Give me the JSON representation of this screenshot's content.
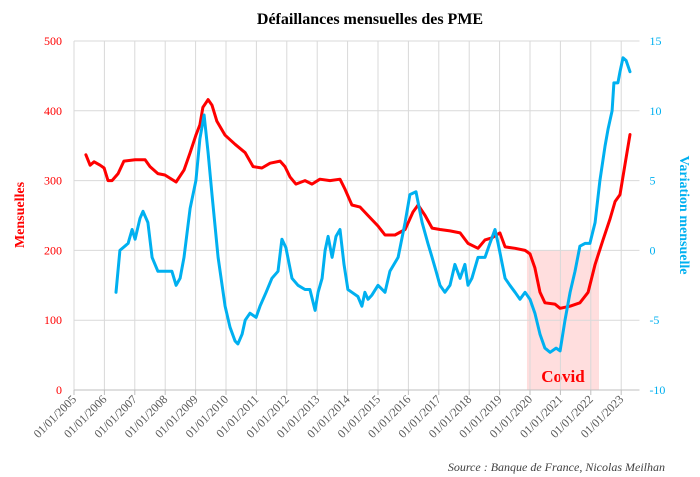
{
  "chart_data": {
    "type": "line",
    "title": "Défaillances mensuelles des PME",
    "source": "Source : Banque de France, Nicolas Meilhan",
    "xlabel": "",
    "ylabel_left": "Mensuelles",
    "ylabel_right": "Variation mensuelle",
    "xlim": [
      2005,
      2023.6
    ],
    "ylim_left": [
      0,
      500
    ],
    "ylim_right": [
      -10,
      15
    ],
    "grid": true,
    "x_ticks": [
      2005,
      2006,
      2007,
      2008,
      2009,
      2010,
      2011,
      2012,
      2013,
      2014,
      2015,
      2016,
      2017,
      2018,
      2019,
      2020,
      2021,
      2022,
      2023
    ],
    "x_tick_labels": [
      "01/01/2005",
      "01/01/2006",
      "01/01/2007",
      "01/01/2008",
      "01/01/2009",
      "01/01/2010",
      "01/01/2011",
      "01/01/2012",
      "01/01/2013",
      "01/01/2014",
      "01/01/2015",
      "01/01/2016",
      "01/01/2017",
      "01/01/2018",
      "01/01/2019",
      "01/01/2020",
      "01/01/2021",
      "01/01/2022",
      "01/01/2023"
    ],
    "y_left_ticks": [
      0,
      100,
      200,
      300,
      400,
      500
    ],
    "y_left_tick_labels": [
      "0",
      "100",
      "200",
      "300",
      "400",
      "500"
    ],
    "y_right_ticks": [
      -10,
      -5,
      0,
      5,
      10,
      15
    ],
    "y_right_tick_labels": [
      "-10",
      "-5",
      "0",
      "5",
      "10",
      "15"
    ],
    "annotation": {
      "label": "Covid",
      "x_range": [
        2019.9,
        2022.27
      ],
      "y_range_left": [
        0,
        200
      ],
      "color": "#ffdede"
    },
    "series": [
      {
        "name": "Mensuelles",
        "axis": "left",
        "color": "#ff0000",
        "x": [
          2005.39,
          2005.53,
          2005.66,
          2005.86,
          2005.99,
          2006.12,
          2006.25,
          2006.45,
          2006.64,
          2007.01,
          2007.34,
          2007.5,
          2007.76,
          2007.99,
          2008.36,
          2008.62,
          2008.82,
          2009.01,
          2009.14,
          2009.24,
          2009.41,
          2009.54,
          2009.7,
          2009.97,
          2010.3,
          2010.63,
          2010.89,
          2011.18,
          2011.45,
          2011.78,
          2011.94,
          2012.11,
          2012.3,
          2012.6,
          2012.83,
          2013.09,
          2013.42,
          2013.75,
          2013.91,
          2014.14,
          2014.41,
          2014.67,
          2015.0,
          2015.23,
          2015.56,
          2015.89,
          2016.15,
          2016.32,
          2016.55,
          2016.78,
          2017.04,
          2017.37,
          2017.7,
          2017.96,
          2018.29,
          2018.52,
          2018.75,
          2019.01,
          2019.18,
          2019.51,
          2019.84,
          2020.0,
          2020.16,
          2020.33,
          2020.49,
          2020.82,
          2020.99,
          2021.32,
          2021.64,
          2021.91,
          2022.14,
          2022.4,
          2022.63,
          2022.8,
          2022.96,
          2023.13,
          2023.29
        ],
        "y": [
          337,
          322,
          327,
          322,
          318,
          300,
          300,
          310,
          328,
          330,
          330,
          320,
          310,
          308,
          298,
          315,
          340,
          365,
          380,
          405,
          416,
          408,
          385,
          365,
          352,
          340,
          320,
          318,
          325,
          328,
          320,
          305,
          295,
          300,
          295,
          302,
          300,
          302,
          288,
          265,
          262,
          250,
          235,
          222,
          222,
          230,
          255,
          265,
          250,
          232,
          230,
          228,
          225,
          210,
          203,
          215,
          218,
          225,
          205,
          203,
          200,
          195,
          175,
          140,
          125,
          123,
          117,
          120,
          125,
          140,
          180,
          215,
          245,
          270,
          280,
          325,
          366
        ]
      },
      {
        "name": "Variation mensuelle",
        "axis": "right",
        "color": "#00b0f0",
        "x": [
          2006.38,
          2006.51,
          2006.78,
          2006.91,
          2007.01,
          2007.17,
          2007.27,
          2007.43,
          2007.57,
          2007.76,
          2007.93,
          2008.22,
          2008.36,
          2008.49,
          2008.62,
          2008.82,
          2009.01,
          2009.14,
          2009.28,
          2009.41,
          2009.54,
          2009.74,
          2009.97,
          2010.13,
          2010.3,
          2010.39,
          2010.53,
          2010.63,
          2010.79,
          2010.99,
          2011.12,
          2011.32,
          2011.51,
          2011.71,
          2011.84,
          2011.97,
          2012.17,
          2012.37,
          2012.6,
          2012.76,
          2012.93,
          2013.03,
          2013.16,
          2013.26,
          2013.36,
          2013.49,
          2013.62,
          2013.75,
          2013.88,
          2014.01,
          2014.14,
          2014.34,
          2014.47,
          2014.57,
          2014.67,
          2014.8,
          2015.0,
          2015.23,
          2015.39,
          2015.66,
          2015.89,
          2016.05,
          2016.25,
          2016.45,
          2016.64,
          2016.78,
          2016.91,
          2017.04,
          2017.2,
          2017.37,
          2017.53,
          2017.7,
          2017.86,
          2017.96,
          2018.09,
          2018.29,
          2018.52,
          2018.68,
          2018.85,
          2018.95,
          2019.18,
          2019.34,
          2019.51,
          2019.67,
          2019.84,
          2020.0,
          2020.16,
          2020.33,
          2020.49,
          2020.66,
          2020.86,
          2020.99,
          2021.15,
          2021.32,
          2021.48,
          2021.64,
          2021.81,
          2021.97,
          2022.14,
          2022.3,
          2022.47,
          2022.57,
          2022.7,
          2022.76,
          2022.89,
          2022.96,
          2023.06,
          2023.16,
          2023.29
        ],
        "y": [
          -3,
          0,
          0.5,
          1.5,
          0.8,
          2.3,
          2.8,
          2,
          -0.5,
          -1.5,
          -1.5,
          -1.5,
          -2.5,
          -2,
          -0.5,
          3,
          5,
          8,
          9.7,
          7,
          4,
          -0.5,
          -4,
          -5.5,
          -6.5,
          -6.7,
          -6,
          -5,
          -4.5,
          -4.8,
          -4,
          -3,
          -2,
          -1.5,
          0.8,
          0.2,
          -2,
          -2.5,
          -2.8,
          -2.8,
          -4.3,
          -3,
          -2,
          0,
          1,
          -0.5,
          1,
          1.5,
          -1,
          -2.8,
          -3,
          -3.3,
          -4,
          -3,
          -3.5,
          -3.2,
          -2.5,
          -3,
          -1.5,
          -0.5,
          2,
          4,
          4.2,
          2,
          0.5,
          -0.5,
          -1.5,
          -2.5,
          -3,
          -2.5,
          -1,
          -2,
          -1,
          -2.5,
          -2,
          -0.5,
          -0.5,
          0.5,
          1.5,
          0.5,
          -2,
          -2.5,
          -3,
          -3.5,
          -3,
          -3.5,
          -4.5,
          -6,
          -7,
          -7.3,
          -7,
          -7.2,
          -5,
          -3,
          -1.5,
          0.3,
          0.5,
          0.5,
          2,
          5,
          7.5,
          8.7,
          10,
          12,
          12,
          12.8,
          13.8,
          13.6,
          12.8
        ]
      }
    ]
  }
}
